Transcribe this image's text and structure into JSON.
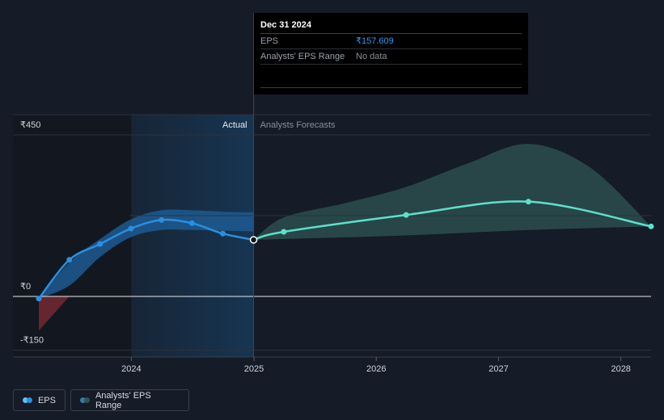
{
  "tooltip": {
    "date": "Dec 31 2024",
    "rows": [
      {
        "label": "EPS",
        "value": "₹157.609"
      },
      {
        "label": "Analysts' EPS Range",
        "value": "No data"
      }
    ]
  },
  "legend": {
    "eps_label": "EPS",
    "range_label": "Analysts' EPS Range"
  },
  "colors": {
    "eps_actual": "#2a8fe0",
    "eps_forecast": "#5ce0cc",
    "range_forecast": "#2f5653",
    "range_actual": "#1d5a92",
    "range_negative": "#7a2a33",
    "background": "#151b27"
  },
  "chart_data": {
    "type": "line",
    "title": "",
    "xlabel": "",
    "ylabel": "",
    "y_ticks": [
      {
        "value": 450,
        "label": "₹450"
      },
      {
        "value": 0,
        "label": "₹0"
      },
      {
        "value": -150,
        "label": "-₹150"
      }
    ],
    "x_ticks": [
      {
        "value": "2024-01-01",
        "label": "2024"
      },
      {
        "value": "2025-01-01",
        "label": "2025"
      },
      {
        "value": "2026-01-01",
        "label": "2026"
      },
      {
        "value": "2027-01-01",
        "label": "2027"
      },
      {
        "value": "2028-01-01",
        "label": "2028"
      }
    ],
    "ylim": [
      -150,
      450
    ],
    "xlim": [
      "2023-03-01",
      "2028-03-31"
    ],
    "divider_date": "2024-12-31",
    "highlight_start": "2024-01-01",
    "region_labels": {
      "actual": "Actual",
      "forecast": "Analysts Forecasts"
    },
    "series": [
      {
        "name": "EPS",
        "role": "actual",
        "points": [
          {
            "x": "2023-03-31",
            "y": -6
          },
          {
            "x": "2023-06-30",
            "y": 102
          },
          {
            "x": "2023-09-30",
            "y": 146
          },
          {
            "x": "2023-12-31",
            "y": 189
          },
          {
            "x": "2024-03-31",
            "y": 213
          },
          {
            "x": "2024-06-30",
            "y": 204
          },
          {
            "x": "2024-09-30",
            "y": 175
          },
          {
            "x": "2024-12-31",
            "y": 157.609
          }
        ]
      },
      {
        "name": "EPS",
        "role": "forecast",
        "points": [
          {
            "x": "2024-12-31",
            "y": 157.609
          },
          {
            "x": "2025-03-31",
            "y": 180
          },
          {
            "x": "2026-03-31",
            "y": 227
          },
          {
            "x": "2027-03-31",
            "y": 264
          },
          {
            "x": "2028-03-31",
            "y": 195
          }
        ]
      }
    ],
    "range_actual": {
      "upper": [
        {
          "x": "2023-03-31",
          "y": -6
        },
        {
          "x": "2023-06-30",
          "y": 95
        },
        {
          "x": "2023-09-30",
          "y": 160
        },
        {
          "x": "2023-12-31",
          "y": 215
        },
        {
          "x": "2024-03-31",
          "y": 240
        },
        {
          "x": "2024-06-30",
          "y": 240
        },
        {
          "x": "2024-09-30",
          "y": 236
        },
        {
          "x": "2024-12-31",
          "y": 234
        }
      ],
      "lower": [
        {
          "x": "2023-03-31",
          "y": -6
        },
        {
          "x": "2023-06-30",
          "y": 30
        },
        {
          "x": "2023-09-30",
          "y": 110
        },
        {
          "x": "2023-12-31",
          "y": 165
        },
        {
          "x": "2024-03-31",
          "y": 185
        },
        {
          "x": "2024-06-30",
          "y": 185
        },
        {
          "x": "2024-09-30",
          "y": 183
        },
        {
          "x": "2024-12-31",
          "y": 181
        }
      ],
      "negative": [
        {
          "x": "2023-03-31",
          "y": 0
        },
        {
          "x": "2023-06-30",
          "y": 0
        },
        {
          "x": "2023-03-31",
          "y": -95
        }
      ]
    },
    "range_forecast": {
      "upper": [
        {
          "x": "2024-12-31",
          "y": 157.609
        },
        {
          "x": "2025-03-31",
          "y": 220
        },
        {
          "x": "2025-09-30",
          "y": 260
        },
        {
          "x": "2026-03-31",
          "y": 305
        },
        {
          "x": "2026-09-30",
          "y": 370
        },
        {
          "x": "2027-03-31",
          "y": 425
        },
        {
          "x": "2027-09-30",
          "y": 360
        },
        {
          "x": "2028-03-31",
          "y": 195
        }
      ],
      "lower": [
        {
          "x": "2024-12-31",
          "y": 157.609
        },
        {
          "x": "2025-03-31",
          "y": 160
        },
        {
          "x": "2026-03-31",
          "y": 170
        },
        {
          "x": "2027-03-31",
          "y": 185
        },
        {
          "x": "2028-03-31",
          "y": 195
        }
      ]
    }
  }
}
